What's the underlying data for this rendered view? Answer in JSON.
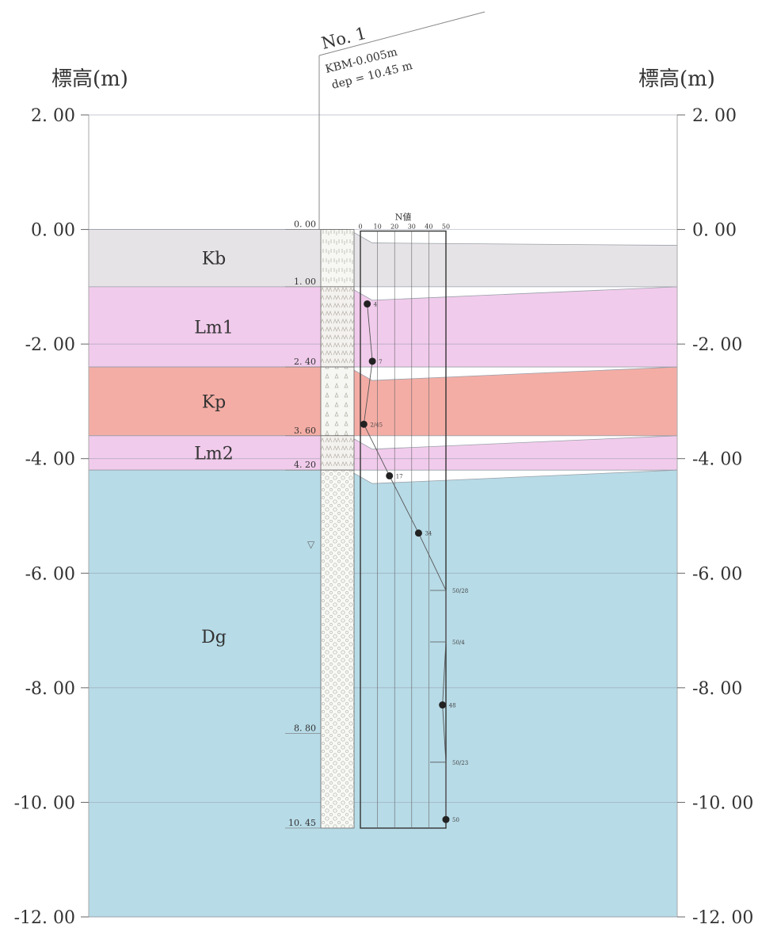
{
  "header": {
    "left_axis_title": "標高(m)",
    "right_axis_title": "標高(m)",
    "borehole_name": "No. 1",
    "borehole_kbm": "KBM-0.005m",
    "borehole_depth": "dep = 10.45 m"
  },
  "axis": {
    "min": -12,
    "max": 2,
    "ticks": [
      {
        "value": 2,
        "left": "2. 00",
        "right": "2. 00"
      },
      {
        "value": 0,
        "left": "0. 00",
        "right": "0. 00"
      },
      {
        "value": -2,
        "left": "-2. 00",
        "right": "-2. 00"
      },
      {
        "value": -4,
        "left": "-4. 00",
        "right": "-4. 00"
      },
      {
        "value": -6,
        "left": "-6. 00",
        "right": "-6. 00"
      },
      {
        "value": -8,
        "left": "-8. 00",
        "right": "-8. 00"
      },
      {
        "value": -10,
        "left": "-10. 00",
        "right": "-10. 00"
      },
      {
        "value": -12,
        "left": "-12. 00",
        "right": "-12. 00"
      }
    ]
  },
  "colors": {
    "Kb": "#e6e3e6",
    "Lm": "#f1cbec",
    "Kp": "#f4ada5",
    "Dg": "#b7dbe7",
    "gridline": "#8f9aa6",
    "ink": "#333333"
  },
  "layers": [
    {
      "name": "Kb",
      "top": 0.0,
      "bottom": -1.0,
      "color_key": "Kb"
    },
    {
      "name": "Lm1",
      "top": -1.0,
      "bottom": -2.4,
      "color_key": "Lm"
    },
    {
      "name": "Kp",
      "top": -2.4,
      "bottom": -3.6,
      "color_key": "Kp"
    },
    {
      "name": "Lm2",
      "top": -3.6,
      "bottom": -4.2,
      "color_key": "Lm"
    },
    {
      "name": "Dg",
      "top": -4.2,
      "bottom": -12.0,
      "color_key": "Dg"
    }
  ],
  "depth_labels": [
    {
      "depth": 0.0,
      "text": "0. 00"
    },
    {
      "depth": 1.0,
      "text": "1. 00"
    },
    {
      "depth": 2.4,
      "text": "2. 40"
    },
    {
      "depth": 3.6,
      "text": "3. 60"
    },
    {
      "depth": 4.2,
      "text": "4. 20"
    },
    {
      "depth": 8.8,
      "text": "8. 80"
    },
    {
      "depth": 10.45,
      "text": "10. 45"
    }
  ],
  "water_level_marker": {
    "depth": 5.5,
    "symbol": "▽"
  },
  "n_value_chart": {
    "title": "N値",
    "ticks": [
      0,
      10,
      20,
      30,
      40,
      50
    ],
    "ticks_labels": [
      "0",
      "10",
      "20",
      "30",
      "40",
      "50"
    ],
    "points": [
      {
        "depth": 1.3,
        "value": 4,
        "label": "4"
      },
      {
        "depth": 2.3,
        "value": 7,
        "label": "7"
      },
      {
        "depth": 3.4,
        "value": 2,
        "label": "2/45"
      },
      {
        "depth": 4.3,
        "value": 17,
        "label": "17"
      },
      {
        "depth": 5.3,
        "value": 34,
        "label": "34"
      },
      {
        "depth": 6.3,
        "value": 50,
        "label": "50/28"
      },
      {
        "depth": 7.2,
        "value": 50,
        "label": "50/4"
      },
      {
        "depth": 8.3,
        "value": 48,
        "label": "48"
      },
      {
        "depth": 9.3,
        "value": 50,
        "label": "50/23"
      },
      {
        "depth": 10.3,
        "value": 50,
        "label": "50"
      }
    ]
  }
}
